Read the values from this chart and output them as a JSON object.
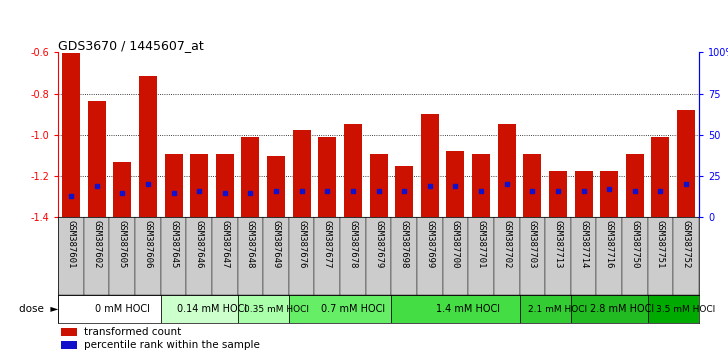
{
  "title": "GDS3670 / 1445607_at",
  "samples": [
    "GSM387601",
    "GSM387602",
    "GSM387605",
    "GSM387606",
    "GSM387645",
    "GSM387646",
    "GSM387647",
    "GSM387648",
    "GSM387649",
    "GSM387676",
    "GSM387677",
    "GSM387678",
    "GSM387679",
    "GSM387698",
    "GSM387699",
    "GSM387700",
    "GSM387701",
    "GSM387702",
    "GSM387703",
    "GSM387713",
    "GSM387714",
    "GSM387716",
    "GSM387750",
    "GSM387751",
    "GSM387752"
  ],
  "transformed_count": [
    -0.605,
    -0.835,
    -1.13,
    -0.715,
    -1.09,
    -1.09,
    -1.09,
    -1.01,
    -1.1,
    -0.975,
    -1.01,
    -0.945,
    -1.09,
    -1.15,
    -0.9,
    -1.08,
    -1.09,
    -0.945,
    -1.09,
    -1.175,
    -1.175,
    -1.175,
    -1.09,
    -1.01,
    -0.88
  ],
  "percentile_rank": [
    13,
    19,
    15,
    20,
    15,
    16,
    15,
    15,
    16,
    16,
    16,
    16,
    16,
    16,
    19,
    19,
    16,
    20,
    16,
    16,
    16,
    17,
    16,
    16,
    20
  ],
  "dose_groups": [
    {
      "label": "0 mM HOCl",
      "start": 0,
      "end": 4,
      "color": "#ffffff"
    },
    {
      "label": "0.14 mM HOCl",
      "start": 4,
      "end": 7,
      "color": "#ccffcc"
    },
    {
      "label": "0.35 mM HOCl",
      "start": 7,
      "end": 9,
      "color": "#99ff99"
    },
    {
      "label": "0.7 mM HOCl",
      "start": 9,
      "end": 13,
      "color": "#66ff66"
    },
    {
      "label": "1.4 mM HOCl",
      "start": 13,
      "end": 18,
      "color": "#44dd44"
    },
    {
      "label": "2.1 mM HOCl",
      "start": 18,
      "end": 20,
      "color": "#33cc33"
    },
    {
      "label": "2.8 mM HOCl",
      "start": 20,
      "end": 23,
      "color": "#22bb22"
    },
    {
      "label": "3.5 mM HOCl",
      "start": 23,
      "end": 25,
      "color": "#00aa00"
    }
  ],
  "ylim_left": [
    -1.4,
    -0.6
  ],
  "ylim_right": [
    0,
    100
  ],
  "yticks_left": [
    -1.4,
    -1.2,
    -1.0,
    -0.8,
    -0.6
  ],
  "yticks_right": [
    0,
    25,
    50,
    75,
    100
  ],
  "grid_lines": [
    -0.8,
    -1.0,
    -1.2
  ],
  "bar_color": "#cc1100",
  "percentile_color": "#1111cc",
  "background_color": "#ffffff",
  "bar_width": 0.7,
  "title_fontsize": 9,
  "axis_fontsize": 8,
  "tick_fontsize": 7,
  "label_fontsize": 6.5
}
